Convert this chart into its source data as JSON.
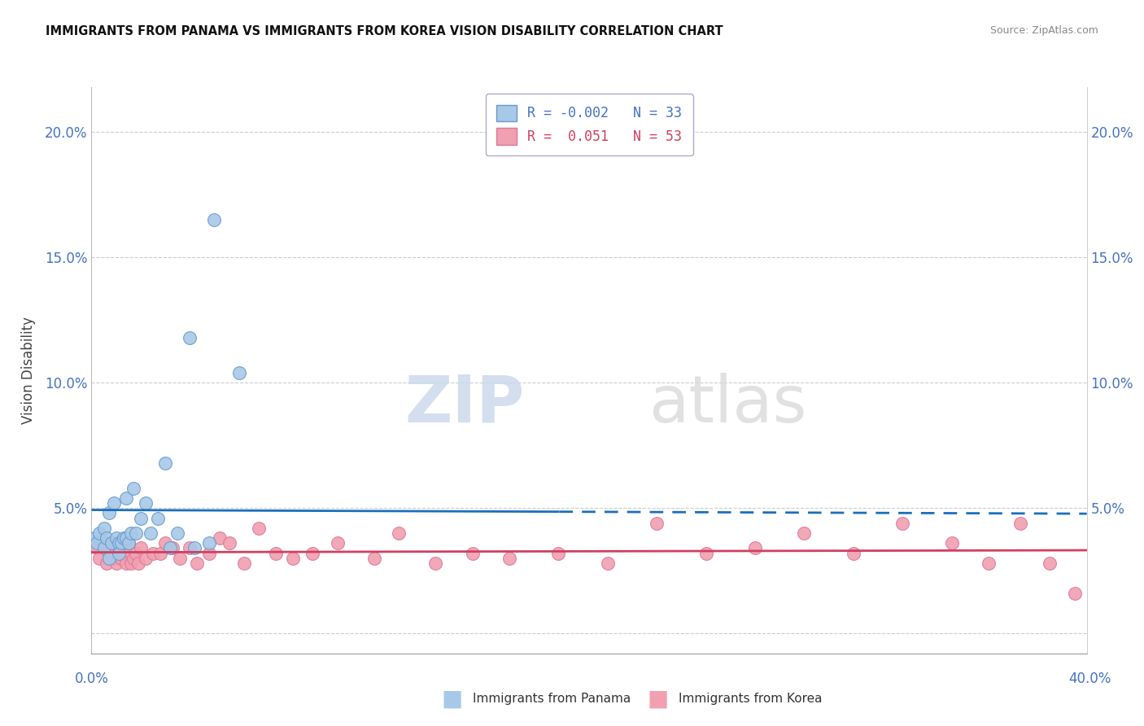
{
  "title": "IMMIGRANTS FROM PANAMA VS IMMIGRANTS FROM KOREA VISION DISABILITY CORRELATION CHART",
  "source": "Source: ZipAtlas.com",
  "ylabel": "Vision Disability",
  "xlim": [
    0.0,
    0.405
  ],
  "ylim": [
    -0.008,
    0.218
  ],
  "ytick_values": [
    0.0,
    0.05,
    0.1,
    0.15,
    0.2
  ],
  "ytick_labels": [
    "",
    "5.0%",
    "10.0%",
    "15.0%",
    "20.0%"
  ],
  "xtick_left": "0.0%",
  "xtick_right": "40.0%",
  "watermark_zip": "ZIP",
  "watermark_atlas": "atlas",
  "panama_color": "#a8c8e8",
  "korea_color": "#f0a0b0",
  "panama_edge": "#6699cc",
  "korea_edge": "#dd7799",
  "panama_line_color": "#1a6fbd",
  "korea_line_color": "#d04060",
  "panama_r": -0.002,
  "panama_n": 33,
  "korea_r": 0.051,
  "korea_n": 53,
  "panama_data": [
    [
      0.001,
      0.038
    ],
    [
      0.002,
      0.036
    ],
    [
      0.003,
      0.04
    ],
    [
      0.005,
      0.034
    ],
    [
      0.005,
      0.042
    ],
    [
      0.006,
      0.038
    ],
    [
      0.007,
      0.048
    ],
    [
      0.007,
      0.03
    ],
    [
      0.008,
      0.036
    ],
    [
      0.009,
      0.052
    ],
    [
      0.01,
      0.038
    ],
    [
      0.011,
      0.036
    ],
    [
      0.011,
      0.032
    ],
    [
      0.012,
      0.036
    ],
    [
      0.013,
      0.038
    ],
    [
      0.014,
      0.038
    ],
    [
      0.014,
      0.054
    ],
    [
      0.015,
      0.036
    ],
    [
      0.016,
      0.04
    ],
    [
      0.017,
      0.058
    ],
    [
      0.018,
      0.04
    ],
    [
      0.02,
      0.046
    ],
    [
      0.022,
      0.052
    ],
    [
      0.024,
      0.04
    ],
    [
      0.027,
      0.046
    ],
    [
      0.03,
      0.068
    ],
    [
      0.032,
      0.034
    ],
    [
      0.035,
      0.04
    ],
    [
      0.04,
      0.118
    ],
    [
      0.042,
      0.034
    ],
    [
      0.048,
      0.036
    ],
    [
      0.05,
      0.165
    ],
    [
      0.06,
      0.104
    ]
  ],
  "korea_data": [
    [
      0.002,
      0.034
    ],
    [
      0.003,
      0.03
    ],
    [
      0.005,
      0.036
    ],
    [
      0.006,
      0.028
    ],
    [
      0.007,
      0.032
    ],
    [
      0.008,
      0.036
    ],
    [
      0.009,
      0.03
    ],
    [
      0.01,
      0.028
    ],
    [
      0.011,
      0.034
    ],
    [
      0.012,
      0.03
    ],
    [
      0.013,
      0.032
    ],
    [
      0.014,
      0.028
    ],
    [
      0.015,
      0.036
    ],
    [
      0.016,
      0.028
    ],
    [
      0.017,
      0.03
    ],
    [
      0.018,
      0.032
    ],
    [
      0.019,
      0.028
    ],
    [
      0.02,
      0.034
    ],
    [
      0.022,
      0.03
    ],
    [
      0.025,
      0.032
    ],
    [
      0.028,
      0.032
    ],
    [
      0.03,
      0.036
    ],
    [
      0.033,
      0.034
    ],
    [
      0.036,
      0.03
    ],
    [
      0.04,
      0.034
    ],
    [
      0.043,
      0.028
    ],
    [
      0.048,
      0.032
    ],
    [
      0.052,
      0.038
    ],
    [
      0.056,
      0.036
    ],
    [
      0.062,
      0.028
    ],
    [
      0.068,
      0.042
    ],
    [
      0.075,
      0.032
    ],
    [
      0.082,
      0.03
    ],
    [
      0.09,
      0.032
    ],
    [
      0.1,
      0.036
    ],
    [
      0.115,
      0.03
    ],
    [
      0.125,
      0.04
    ],
    [
      0.14,
      0.028
    ],
    [
      0.155,
      0.032
    ],
    [
      0.17,
      0.03
    ],
    [
      0.19,
      0.032
    ],
    [
      0.21,
      0.028
    ],
    [
      0.23,
      0.044
    ],
    [
      0.25,
      0.032
    ],
    [
      0.27,
      0.034
    ],
    [
      0.29,
      0.04
    ],
    [
      0.31,
      0.032
    ],
    [
      0.33,
      0.044
    ],
    [
      0.35,
      0.036
    ],
    [
      0.365,
      0.028
    ],
    [
      0.378,
      0.044
    ],
    [
      0.39,
      0.028
    ],
    [
      0.4,
      0.016
    ]
  ]
}
